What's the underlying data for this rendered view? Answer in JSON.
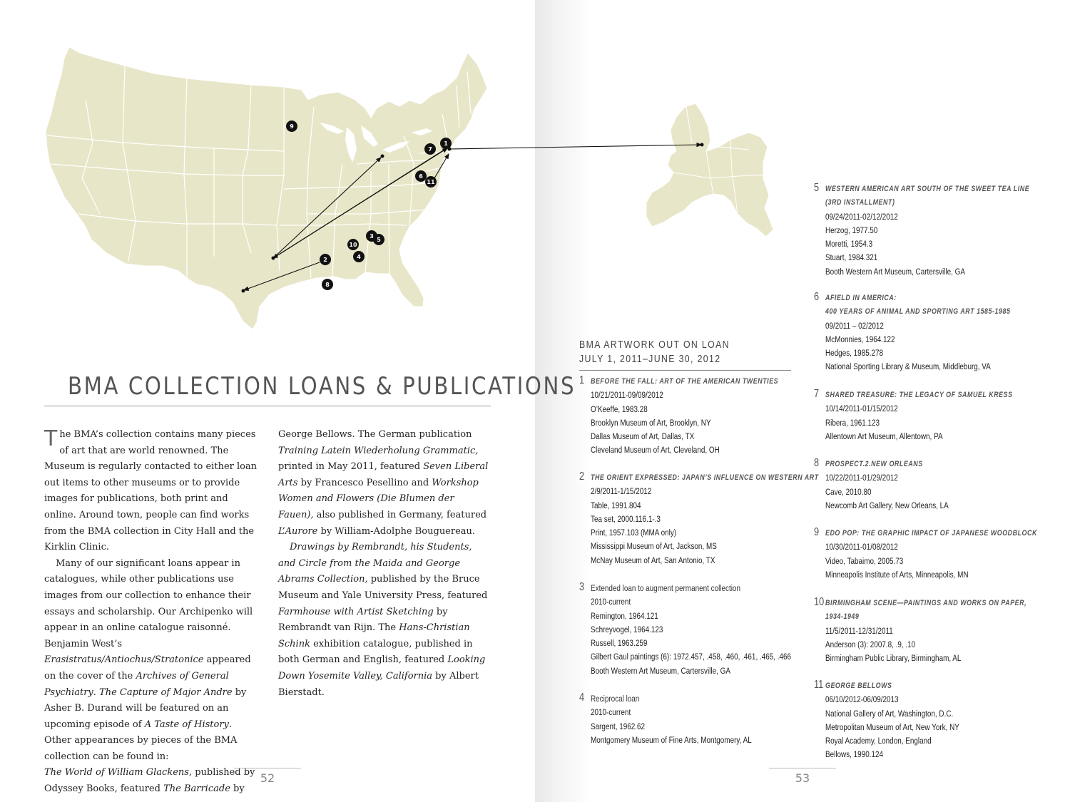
{
  "left_page": {
    "title": "BMA COLLECTION LOANS & PUBLICATIONS",
    "folio": "52",
    "dropcap": "T",
    "paragraphs_col1": [
      "he BMA’s collection contains many pieces of art that are world renowned. The Museum is regularly contacted to either loan out items to other museums or to provide images for publications, both print and online. Around town, people can find works from the BMA collection in City Hall and the Kirklin Clinic."
    ],
    "col1_p2": {
      "t1": "Many of our significant loans appear in catalogues, while other publications use images from our collection to enhance their essays and scholarship. Our Archipenko will appear in an online catalogue raisonné. Benjamin West’s ",
      "i1": "Erasistratus/Antiochus/Stratonice",
      "t2": " appeared on the cover of the ",
      "i2": "Archives of General Psychiatry",
      "t3": ". ",
      "i3": "The Capture of Major Andre",
      "t4": " by Asher B. Durand will be featured on an upcoming episode of ",
      "i4": "A Taste of History",
      "t5": ". Other appearances by pieces of the BMA collection can be found in:"
    },
    "col1_p3": {
      "i1": "The World of William Glackens,",
      "t1": " published by Odyssey Books, featured ",
      "i2": "The Barricade",
      "t2": " by"
    },
    "col2_p1": {
      "t1": "George Bellows. The German publication ",
      "i1": "Training Latein Wiederholung Grammatic,",
      "t2": " printed in May 2011, featured ",
      "i2": "Seven Liberal Arts",
      "t3": " by Francesco Pesellino and ",
      "i3": "Workshop Women and Flowers (Die Blumen der Fauen),",
      "t4": " also published in Germany, featured ",
      "i4": "L’Aurore",
      "t5": " by William-Adolphe Bouguereau."
    },
    "col2_p2": {
      "i1": "Drawings by Rembrandt, his Students, and Circle from the Maida and George Abrams Collection,",
      "t1": " published by the Bruce Museum and Yale University Press, featured ",
      "i2": "Farmhouse with Artist Sketching",
      "t2": " by Rembrandt van Rijn. The ",
      "i3": "Hans-Christian Schink",
      "t3": " exhibition catalogue, published in both German and English, featured ",
      "i4": "Looking Down Yosemite Valley, California",
      "t4": " by Albert Bierstadt."
    }
  },
  "map": {
    "markers": [
      "1",
      "2",
      "3",
      "4",
      "5",
      "6",
      "7",
      "8",
      "9",
      "10",
      "11"
    ],
    "land_color": "#e8e6c8",
    "border_color": "#ffffff"
  },
  "right_page": {
    "folio": "53",
    "heading_line1": "BMA ARTWORK OUT ON LOAN",
    "heading_line2": "JULY 1, 2011–JUNE 30, 2012",
    "entries": [
      {
        "num": "1",
        "title": [
          "BEFORE THE FALL: ART OF THE AMERICAN TWENTIES"
        ],
        "lines": [
          "10/21/2011-09/09/2012",
          "O’Keeffe, 1983.28",
          "Brooklyn Museum of Art, Brooklyn, NY",
          "Dallas Museum of Art, Dallas, TX",
          "Cleveland Museum of Art, Cleveland, OH"
        ]
      },
      {
        "num": "2",
        "title": [
          "THE ORIENT EXPRESSED: JAPAN’S INFLUENCE ON WESTERN ART"
        ],
        "lines": [
          "2/9/2011-1/15/2012",
          "Table, 1991.804",
          "Tea set, 2000.116.1-.3",
          "Print, 1957.103 (MMA only)",
          "Mississippi Museum of Art, Jackson, MS",
          "McNay Museum of Art, San Antonio, TX"
        ]
      },
      {
        "num": "3",
        "plain": "Extended loan to augment permanent collection",
        "lines": [
          "2010-current",
          "Remington, 1964.121",
          "Schreyvogel, 1964.123",
          "Russell, 1963.259",
          "Gilbert Gaul paintings (6): 1972.457, .458, .460, .461, .465, .466",
          "Booth Western Art Museum, Cartersville, GA"
        ]
      },
      {
        "num": "4",
        "plain": "Reciprocal loan",
        "lines": [
          "2010-current",
          "Sargent, 1962.62",
          "Montgomery Museum of Fine Arts, Montgomery, AL"
        ]
      },
      {
        "num": "5",
        "title": [
          "WESTERN AMERICAN ART SOUTH OF THE SWEET TEA LINE",
          "(3RD INSTALLMENT)"
        ],
        "lines": [
          "09/24/2011-02/12/2012",
          "Herzog, 1977.50",
          "Moretti, 1954.3",
          "Stuart, 1984.321",
          "Booth Western Art Museum, Cartersville, GA"
        ]
      },
      {
        "num": "6",
        "title": [
          "AFIELD IN AMERICA:",
          "400 YEARS OF ANIMAL AND SPORTING ART 1585-1985"
        ],
        "lines": [
          "09/2011 – 02/2012",
          "McMonnies, 1964.122",
          "Hedges, 1985.278",
          "National Sporting Library & Museum, Middleburg, VA"
        ]
      },
      {
        "num": "7",
        "title": [
          "SHARED TREASURE: THE LEGACY OF SAMUEL KRESS"
        ],
        "lines": [
          "10/14/2011-01/15/2012",
          "Ribera, 1961.123",
          "Allentown Art Museum, Allentown, PA"
        ]
      },
      {
        "num": "8",
        "title": [
          "PROSPECT.2.NEW ORLEANS"
        ],
        "lines": [
          "10/22/2011-01/29/2012",
          "Cave, 2010.80",
          "Newcomb Art Gallery, New Orleans, LA"
        ]
      },
      {
        "num": "9",
        "title": [
          "EDO POP: THE GRAPHIC IMPACT OF JAPANESE WOODBLOCK"
        ],
        "lines": [
          "10/30/2011-01/08/2012",
          "Video, Tabaimo, 2005.73",
          "Minneapolis Institute of Arts, Minneapolis, MN"
        ]
      },
      {
        "num": "10",
        "title": [
          "BIRMINGHAM SCENE—PAINTINGS AND WORKS ON PAPER,",
          "1934-1949"
        ],
        "lines": [
          "11/5/2011-12/31/2011",
          "Anderson (3): 2007.8, .9, .10",
          "Birmingham Public Library, Birmingham, AL"
        ]
      },
      {
        "num": "11",
        "title": [
          "GEORGE BELLOWS"
        ],
        "lines": [
          "06/10/2012-06/09/2013",
          "National Gallery of Art, Washington, D.C.",
          "Metropolitan Museum of Art, New York, NY",
          "Royal Academy, London, England",
          "Bellows, 1990.124"
        ]
      }
    ]
  }
}
